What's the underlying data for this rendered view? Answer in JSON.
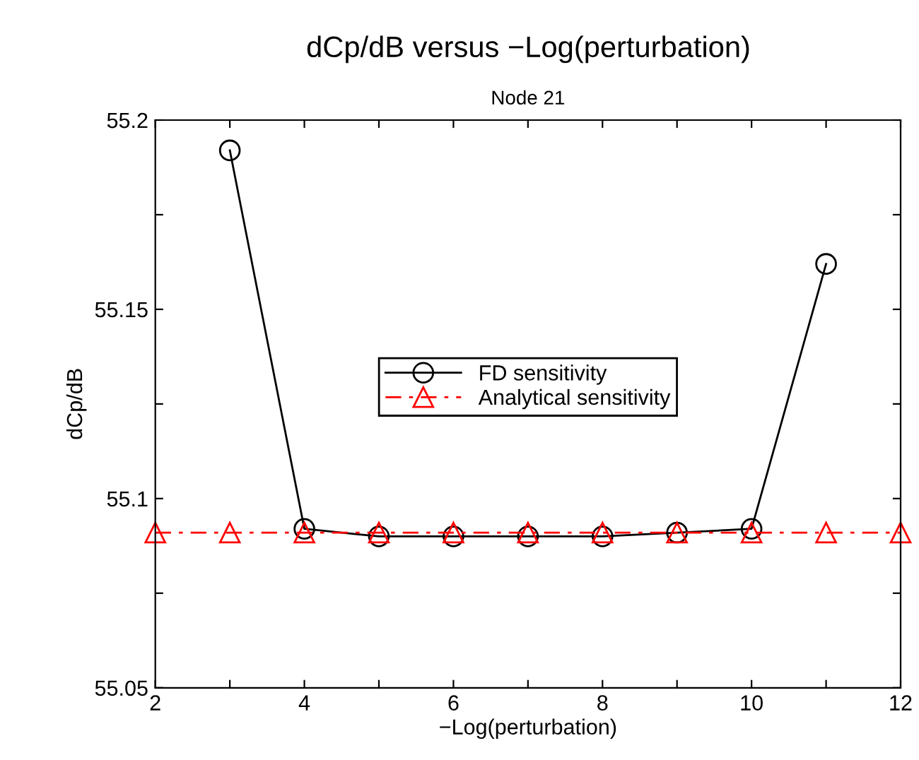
{
  "chart_data": {
    "type": "line",
    "title": "dCp/dB versus −Log(perturbation)",
    "subtitle": "Node 21",
    "xlabel": "−Log(perturbation)",
    "ylabel": "dCp/dB",
    "x": [
      2,
      3,
      4,
      5,
      6,
      7,
      8,
      9,
      10,
      11,
      12
    ],
    "series": [
      {
        "name": "FD sensitivity",
        "color": "#000000",
        "marker": "circle",
        "line_style": "solid",
        "values": [
          null,
          55.192,
          55.092,
          55.09,
          55.09,
          55.09,
          55.09,
          55.091,
          55.092,
          55.162,
          null
        ]
      },
      {
        "name": "Analytical sensitivity",
        "color": "#ff0000",
        "marker": "triangle",
        "line_style": "dashdot",
        "values": [
          55.091,
          55.091,
          55.091,
          55.091,
          55.091,
          55.091,
          55.091,
          55.091,
          55.091,
          55.091,
          55.091
        ]
      }
    ],
    "xlim": [
      2,
      12
    ],
    "ylim": [
      55.05,
      55.2
    ],
    "xticks": [
      2,
      {
        "value": 3,
        "label": null
      },
      4,
      {
        "value": 5,
        "label": null
      },
      6,
      {
        "value": 7,
        "label": null
      },
      8,
      {
        "value": 9,
        "label": null
      },
      10,
      {
        "value": 11,
        "label": null
      },
      12
    ],
    "yticks": [
      55.05,
      {
        "value": 55.075,
        "label": null
      },
      55.1,
      {
        "value": 55.125,
        "label": null
      },
      55.15,
      {
        "value": 55.175,
        "label": null
      },
      55.2
    ],
    "grid": false,
    "legend": "center"
  }
}
